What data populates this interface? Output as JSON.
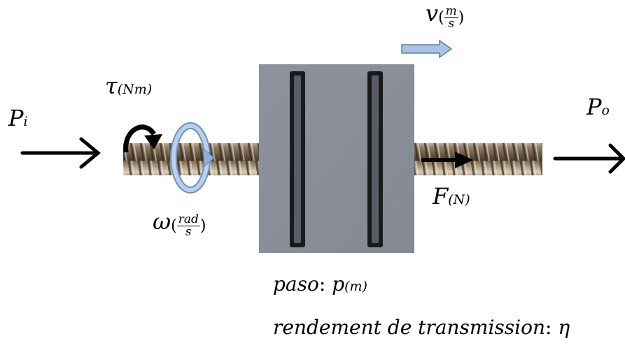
{
  "labels": {
    "power_in": {
      "sym": "P",
      "sub": "i"
    },
    "power_out": {
      "sym": "P",
      "sub": "o"
    },
    "torque": {
      "sym": "τ",
      "sub": "(Nm)"
    },
    "angular_velocity": {
      "sym": "ω",
      "num": "rad",
      "den": "s"
    },
    "velocity": {
      "sym": "v",
      "num": "m",
      "den": "s"
    },
    "force": {
      "sym": "F",
      "sub": "(N)"
    }
  },
  "captions": {
    "pitch": {
      "name": "paso",
      "sep": ":",
      "sym": "p",
      "sub": "(m)"
    },
    "efficiency": {
      "name": "rendement de transmission",
      "sep": ":",
      "sym": "η"
    }
  },
  "colors": {
    "block": "#8b8f99",
    "slot": "#1a1a1a",
    "screw_dark": "#5e4a34",
    "screw_light": "#c9b79a",
    "arrow": "#000000",
    "velocity_arrow": "#a9c4e3",
    "rotation_arrow": "#a9c4e3"
  }
}
